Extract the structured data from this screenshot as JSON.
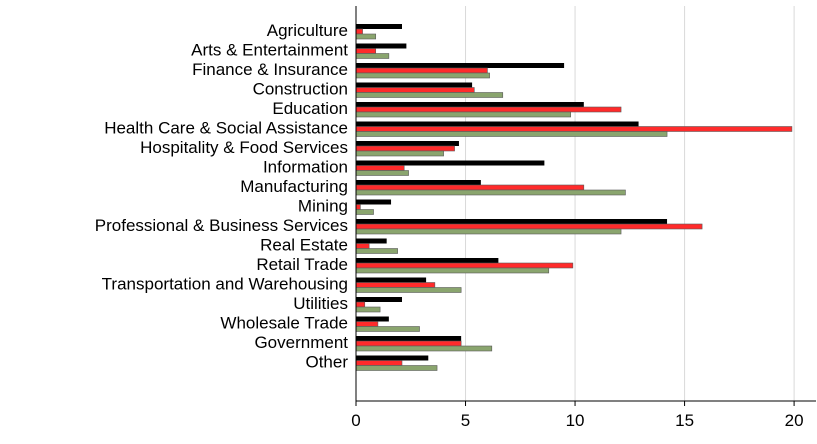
{
  "chart_data": {
    "type": "bar",
    "orientation": "horizontal",
    "categories": [
      "Agriculture",
      "Arts & Entertainment",
      "Finance & Insurance",
      "Construction",
      "Education",
      "Health Care & Social Assistance",
      "Hospitality & Food Services",
      "Information",
      "Manufacturing",
      "Mining",
      "Professional & Business Services",
      "Real Estate",
      "Retail Trade",
      "Transportation and Warehousing",
      "Utilities",
      "Wholesale Trade",
      "Government",
      "Other"
    ],
    "series": [
      {
        "color": "#000000",
        "values": [
          2.1,
          2.3,
          9.5,
          5.3,
          10.4,
          12.9,
          4.7,
          8.6,
          5.7,
          1.6,
          14.2,
          1.4,
          6.5,
          3.2,
          2.1,
          1.5,
          4.8,
          3.3
        ]
      },
      {
        "color": "#ff2b2b",
        "values": [
          0.3,
          0.9,
          6.0,
          5.4,
          12.1,
          19.9,
          4.5,
          2.2,
          10.4,
          0.2,
          15.8,
          0.6,
          9.9,
          3.6,
          0.4,
          1.0,
          4.8,
          2.1
        ]
      },
      {
        "color": "#8aa56e",
        "values": [
          0.9,
          1.5,
          6.1,
          6.7,
          9.8,
          14.2,
          4.0,
          2.4,
          12.3,
          0.8,
          12.1,
          1.9,
          8.8,
          4.8,
          1.1,
          2.9,
          6.2,
          3.7
        ]
      }
    ],
    "xticks": [
      "0",
      "5",
      "10",
      "15",
      "20"
    ],
    "xlim": [
      0,
      21
    ],
    "grid": "vertical",
    "title": "",
    "xlabel": "",
    "ylabel": ""
  }
}
